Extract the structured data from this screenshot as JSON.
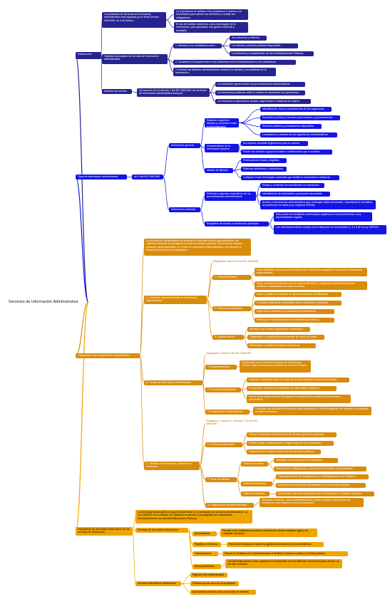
{
  "root": "Servicios de Información Administrativa",
  "intro": {
    "label": "Introducción",
    "regulacion": "La prestación de servicios de información administrativa está regulada por el Real Decreto 208/1996, de 9 de febrero",
    "importancia": "La importancia de facilitar a los ciudadanos el acceso a la información para ejercer sus derechos y cumplir sus obligaciones.",
    "tecnologias": "El uso de medios modernos, como tecnologías de la información, para garantizar una gestión eficiente y accesible.",
    "objetivos": "Objetivos principales del servicio de información administrativa",
    "obj1": "1. Informar a los ciudadanos sobre:",
    "obj1a": "Sus derechos y deberes.",
    "obj1b": "Los bienes y servicios públicos disponibles.",
    "obj1c": "La estructura y competencias de las Administraciones Públicas.",
    "obj2": "2. Garantizar la transparencia en las relaciones entre la Administración y los ciudadanos.",
    "obj3": "3. Reducir las barreras administrativas mediante la claridad y accesibilidad de la información."
  },
  "ambito": {
    "label": "Ámbitos del servicio",
    "desc": "De acuerdo con el artículo 1 del RD 208/1996, los servicios de información administrativa incluyen:",
    "a1": "La orientación general sobre los procedimientos administrativos.",
    "a2": "La información particular sobre el estado de tramitación de expedientes.",
    "a3": "La recepción y respuesta de quejas, sugerencias e iniciativas de mejora."
  },
  "tipos": {
    "label": "Tipos de información administrativa",
    "art": "Art 3 del RD 208/1996",
    "general": "Información general",
    "relativa": "Relativa a aspectos básicos y comunes a toda la Administración",
    "r1": "Identificación, fines y competencias de los organismos.",
    "r2": "Requisitos jurídicos y técnicos para trámites y procedimientos.",
    "r3": "Servicios públicos y prestaciones disponibles.",
    "r4": "Localización y horarios de los organismos administrativos.",
    "caracteristicas": "Características de la información general",
    "c1": "No requiere acreditar legitimación para su acceso.",
    "c2": "Puede ser ofrecida a grupos sociales o instituciones que lo soliciten.",
    "medios": "Medios de difusión",
    "m1": "Publicaciones físicas y digitales.",
    "m2": "Sistemas telefónicos y electrónicos.",
    "m3": "Cualquier medio tecnológico avanzado que facilite la información a distancia.",
    "particular": "Información particular",
    "referida": "Referida a aspectos específicos de los procedimientos administrativos:",
    "p1": "Estado y contenido de expedientes en tramitación.",
    "p2": "Identificación de autoridades y personal responsable.",
    "p3": "Acceso a documentos administrativos que contengan datos personales, respetando la normativa de protección de datos (Ley Orgánica 3/2018).",
    "requisitos": "Requisitos de acceso a información particular:",
    "q1": "Sólo puede ser facilitada a interesados legítimos en el procedimiento o sus representantes legales.",
    "q2": "Los interesados deben cumplir con lo dispuesto en los artículos 3, 4 y 5 de la Ley 39/2015."
  },
  "org": {
    "label": "Organización de la información administrativa",
    "desc": "La información administrativa se organiza en distintas niveles para garantizar una cobertura eficiente y homogénea en todo el territorio nacional. Estos niveles incluyen unidades departamentales, el Centro de Información Administrativa y las oficinas de información y atención al ciudadano.",
    "a": "A. Unidades departamentales de información administrativa",
    "a_reg": "Regulación: Artículo 5 del RD 208/1996.",
    "a1": "1. Responsabilidad",
    "a1a": "Cada Ministerio cuenta con una Subdirección General encargada de coordinar la información administrativa.",
    "a1b": "Estas unidades interactúan con los centros directivos y organismos dependientes para mantener actualizadas las bases de datos.",
    "a2": "2. Funciones principales",
    "a2a": "Crear y mantener una base de datos actualizada del Ministerio.",
    "a2b": "Coordinar oficinas de información dentro del ámbito ministerial.",
    "a2c": "Supervisar la difusión de publicaciones informativas.",
    "a2d": "Participar en la elaboración de materiales informativos.",
    "a3": "3. Gestión interna",
    "a3a": "Atención con fuentes orgánicas de información.",
    "a3b": "Tratamiento y actualización permanente de bases de datos.",
    "a3c": "Elaboración y difusión de datos informativos.",
    "b": "B. Centro de Información Administrativa",
    "b_reg": "Regulación: Artículo 6 del RD 208/1996.",
    "b1": "1. Responsabilidad",
    "b1a": "Gestionado por la Dirección General de Gobernanza Pública, bajo la Secretaría de Estado de Función Pública.",
    "b2": "2. Funciones específicas",
    "b2a": "Mantener y distribuir bases de datos de la Administración General del Estado.",
    "b2b": "Proporcionar servicios centralizados de información telefónica.",
    "b2c": "Actuar como órgano técnico de apoyo en la mejora de la calidad de los servicios informativos.",
    "b3": "3. Colaboración interministerial",
    "b3a": "Coordinar las oficinas de información para garantizar un nivel homogéneo de atención al ciudadano en todo el territorio.",
    "c": "C. Oficinas de información y atención al ciudadano",
    "c_reg": "Regulación: Capítulo 3, artículos 7-10 del RD 208/1996.",
    "c1": "1. Funciones generales",
    "c1a": "Ofrecer información administrativa de carácter general y particular.",
    "c1b": "Recibir quejas, reclamaciones y sugerencias de los ciudadanos.",
    "c1c": "Colaborar en la mejora continua de los servicios públicos.",
    "c2": "2. Tipos de oficinas",
    "c2c": "Oficinas centrales",
    "c2c1": "Ubicadas en las sedes de los Ministerios.",
    "c2c2": "Pueden tener delegaciones o puntos de información especializados.",
    "c2t": "Oficinas territoriales",
    "c2t1": "Dependientes de las Delegaciones y Subdelegaciones del Gobierno.",
    "c2t2": "Coordinan la información administrativa en su ámbito territorial.",
    "c2s": "Oficinas sectoriales",
    "c2s1": "Vinculadas a servicios específicos de los Ministerios o entidades públicas.",
    "c3": "3. Colaboración interadministrativa",
    "c3a": "Mediante convenios, varias Administraciones pueden integrar sus servicios de información para facilitar el acceso ciudadano."
  },
  "medios_el": {
    "label": "Importancia de los medios electrónicos en los servicios de información",
    "desc": "La tecnología desempeña un papel fundamental en la prestación de servicios administrativos. La Ley 39/2015, en su artículo 14, establece el derecho y la obligación de relacionarse electrónicamente con las Administraciones Públicas.",
    "ventajas": "Ventajas de los medios electrónicos",
    "v1": "Accesibilidad:",
    "v1a": "Permite a los ciudadanos acceder a información desde cualquier lugar y en cualquier momento.",
    "v2": "Rapidez y eficiencia:",
    "v2a": "Reduce los tiempos de espera y agiliza la tramitación de procedimientos.",
    "v3": "Transparencia:",
    "v3a": "Mejora la confianza en la Administración al facilitar el acceso a datos y servicios públicos.",
    "v4": "Interoperabilidad:",
    "v4a": "Las Administraciones deben garantizar la integración de sus sistemas electrónicos para ofrecer un servicio unificado.",
    "servicios": "Servicios telemáticos destacados:",
    "s1": "Páginas web institucionales.",
    "s2": "Plataformas de atención al ciudadano.",
    "s3": "Aplicaciones móviles para la consulta de trámites."
  },
  "colors": {
    "intro": "#262491",
    "tipos": "#1414e6",
    "org": "#d98b0c",
    "medios": "#f0a400"
  }
}
